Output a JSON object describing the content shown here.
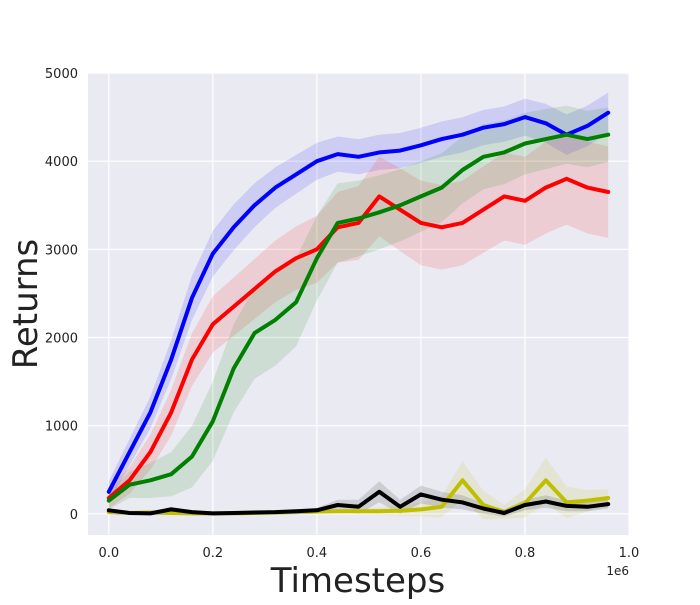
{
  "chart_data": {
    "type": "line",
    "title": "",
    "xlabel": "Timesteps",
    "ylabel": "Returns",
    "x_offset_label": "1e6",
    "xlim": [
      -0.04,
      1.0
    ],
    "ylim": [
      -240,
      5000
    ],
    "x_ticks": [
      0.0,
      0.2,
      0.4,
      0.6,
      0.8,
      1.0
    ],
    "x_tick_labels": [
      "0.0",
      "0.2",
      "0.4",
      "0.6",
      "0.8",
      "1.0"
    ],
    "y_ticks": [
      0,
      1000,
      2000,
      3000,
      4000,
      5000
    ],
    "y_tick_labels": [
      "0",
      "1000",
      "2000",
      "3000",
      "4000",
      "5000"
    ],
    "grid": true,
    "legend": "none",
    "background": "#eaeaf2",
    "x": [
      0.0,
      0.04,
      0.08,
      0.12,
      0.16,
      0.2,
      0.24,
      0.28,
      0.32,
      0.36,
      0.4,
      0.44,
      0.48,
      0.52,
      0.56,
      0.6,
      0.64,
      0.68,
      0.72,
      0.76,
      0.8,
      0.84,
      0.88,
      0.92,
      0.96
    ],
    "series": [
      {
        "color": "#0000ff",
        "values": [
          250,
          700,
          1150,
          1750,
          2450,
          2950,
          3250,
          3500,
          3700,
          3850,
          4000,
          4080,
          4050,
          4100,
          4120,
          4180,
          4250,
          4300,
          4380,
          4420,
          4500,
          4430,
          4300,
          4400,
          4550
        ],
        "band": [
          120,
          150,
          180,
          220,
          250,
          260,
          260,
          250,
          230,
          220,
          210,
          200,
          200,
          200,
          200,
          200,
          200,
          200,
          200,
          200,
          210,
          220,
          230,
          230,
          230
        ]
      },
      {
        "color": "#ff0000",
        "values": [
          180,
          380,
          700,
          1150,
          1750,
          2150,
          2350,
          2550,
          2750,
          2900,
          3000,
          3250,
          3300,
          3600,
          3450,
          3300,
          3250,
          3300,
          3450,
          3600,
          3550,
          3700,
          3800,
          3700,
          3650
        ],
        "band": [
          120,
          150,
          200,
          260,
          300,
          320,
          330,
          340,
          350,
          360,
          380,
          400,
          420,
          450,
          470,
          480,
          480,
          480,
          490,
          500,
          500,
          520,
          520,
          520,
          520
        ]
      },
      {
        "color": "#008000",
        "values": [
          150,
          330,
          380,
          450,
          650,
          1050,
          1650,
          2050,
          2200,
          2400,
          2900,
          3300,
          3350,
          3420,
          3500,
          3600,
          3700,
          3900,
          4050,
          4100,
          4200,
          4250,
          4300,
          4250,
          4300
        ],
        "band": [
          100,
          150,
          200,
          250,
          350,
          450,
          500,
          520,
          520,
          500,
          480,
          450,
          430,
          420,
          410,
          400,
          390,
          380,
          370,
          360,
          350,
          340,
          330,
          320,
          310
        ]
      },
      {
        "color": "#bfbf00",
        "values": [
          20,
          10,
          15,
          10,
          5,
          5,
          5,
          10,
          15,
          20,
          25,
          30,
          30,
          30,
          35,
          50,
          80,
          380,
          100,
          20,
          120,
          380,
          130,
          150,
          180
        ],
        "band": [
          20,
          20,
          20,
          20,
          20,
          20,
          20,
          20,
          20,
          20,
          20,
          20,
          30,
          40,
          60,
          80,
          120,
          220,
          160,
          80,
          160,
          260,
          180,
          120,
          100
        ]
      },
      {
        "color": "#000000",
        "values": [
          40,
          10,
          5,
          50,
          20,
          5,
          10,
          15,
          20,
          30,
          40,
          100,
          80,
          250,
          80,
          220,
          160,
          130,
          60,
          10,
          100,
          140,
          90,
          80,
          110
        ],
        "band": [
          20,
          20,
          20,
          30,
          20,
          20,
          20,
          20,
          20,
          20,
          30,
          60,
          80,
          120,
          80,
          100,
          90,
          80,
          60,
          40,
          60,
          70,
          60,
          50,
          50
        ]
      }
    ]
  }
}
